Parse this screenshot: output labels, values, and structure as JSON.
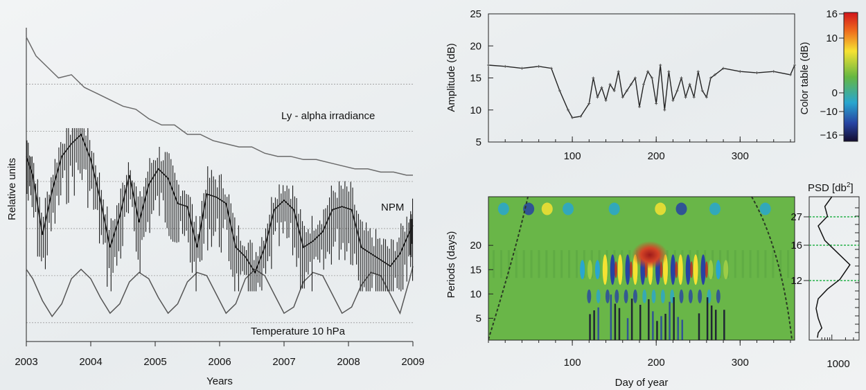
{
  "chart_data": [
    {
      "type": "line",
      "xlabel": "Years",
      "ylabel": "Relative units",
      "xlim": [
        2003,
        2009
      ],
      "x_ticks": [
        "2003",
        "2004",
        "2005",
        "2006",
        "2007",
        "2008",
        "2009"
      ],
      "grid": "dotted horizontal",
      "series": [
        {
          "name": "Ly - alpha irradiance",
          "color": "#6a6a6a",
          "x": [
            2003.0,
            2003.15,
            2003.35,
            2003.5,
            2003.7,
            2003.9,
            2004.1,
            2004.3,
            2004.5,
            2004.7,
            2004.9,
            2005.1,
            2005.3,
            2005.5,
            2005.7,
            2005.9,
            2006.1,
            2006.3,
            2006.5,
            2006.7,
            2006.9,
            2007.1,
            2007.3,
            2007.5,
            2007.7,
            2007.9,
            2008.1,
            2008.3,
            2008.5,
            2008.7,
            2008.9,
            2009.0
          ],
          "y": [
            0.97,
            0.91,
            0.87,
            0.84,
            0.85,
            0.81,
            0.79,
            0.77,
            0.75,
            0.74,
            0.71,
            0.69,
            0.69,
            0.66,
            0.66,
            0.64,
            0.63,
            0.62,
            0.62,
            0.6,
            0.59,
            0.59,
            0.58,
            0.58,
            0.57,
            0.56,
            0.55,
            0.55,
            0.54,
            0.54,
            0.53,
            0.53
          ]
        },
        {
          "name": "NPM",
          "color": "#1a1a1a",
          "x": [
            2003.0,
            2003.1,
            2003.25,
            2003.4,
            2003.55,
            2003.7,
            2003.85,
            2004.0,
            2004.15,
            2004.3,
            2004.45,
            2004.6,
            2004.75,
            2004.9,
            2005.05,
            2005.2,
            2005.35,
            2005.5,
            2005.65,
            2005.8,
            2005.95,
            2006.1,
            2006.25,
            2006.4,
            2006.55,
            2006.7,
            2006.85,
            2007.0,
            2007.15,
            2007.3,
            2007.45,
            2007.6,
            2007.75,
            2007.9,
            2008.05,
            2008.2,
            2008.35,
            2008.5,
            2008.65,
            2008.8,
            2008.95,
            2009.0
          ],
          "y": [
            0.59,
            0.53,
            0.34,
            0.48,
            0.59,
            0.63,
            0.66,
            0.58,
            0.45,
            0.3,
            0.4,
            0.53,
            0.38,
            0.5,
            0.55,
            0.52,
            0.44,
            0.43,
            0.3,
            0.47,
            0.46,
            0.44,
            0.3,
            0.27,
            0.22,
            0.3,
            0.42,
            0.45,
            0.42,
            0.3,
            0.32,
            0.35,
            0.42,
            0.43,
            0.42,
            0.3,
            0.28,
            0.26,
            0.24,
            0.28,
            0.35,
            0.37
          ]
        },
        {
          "name": "Temperature 10 hPa",
          "color": "#555555",
          "x": [
            2003.0,
            2003.1,
            2003.25,
            2003.4,
            2003.55,
            2003.7,
            2003.85,
            2004.0,
            2004.15,
            2004.3,
            2004.45,
            2004.6,
            2004.75,
            2004.9,
            2005.05,
            2005.2,
            2005.35,
            2005.5,
            2005.65,
            2005.8,
            2005.95,
            2006.1,
            2006.25,
            2006.4,
            2006.55,
            2006.7,
            2006.85,
            2007.0,
            2007.15,
            2007.3,
            2007.45,
            2007.6,
            2007.75,
            2007.9,
            2008.05,
            2008.2,
            2008.35,
            2008.5,
            2008.65,
            2008.8,
            2008.95,
            2009.0
          ],
          "y": [
            0.23,
            0.2,
            0.13,
            0.08,
            0.12,
            0.2,
            0.23,
            0.2,
            0.14,
            0.09,
            0.12,
            0.19,
            0.22,
            0.2,
            0.14,
            0.09,
            0.12,
            0.19,
            0.22,
            0.21,
            0.15,
            0.09,
            0.12,
            0.2,
            0.23,
            0.21,
            0.15,
            0.09,
            0.11,
            0.19,
            0.22,
            0.21,
            0.15,
            0.09,
            0.11,
            0.18,
            0.22,
            0.21,
            0.15,
            0.09,
            0.2,
            0.24
          ]
        }
      ]
    },
    {
      "type": "line",
      "xlabel": "",
      "ylabel": "Amplitude (dB)",
      "xlim": [
        0,
        365
      ],
      "ylim": [
        5,
        25
      ],
      "x_ticks": [
        100,
        200,
        300
      ],
      "y_ticks": [
        5,
        10,
        15,
        20,
        25
      ],
      "series": [
        {
          "x": [
            0,
            20,
            40,
            60,
            75,
            85,
            95,
            100,
            110,
            120,
            125,
            130,
            135,
            140,
            145,
            150,
            155,
            160,
            165,
            170,
            175,
            180,
            185,
            190,
            195,
            200,
            205,
            210,
            215,
            220,
            225,
            230,
            235,
            240,
            245,
            250,
            255,
            260,
            265,
            270,
            280,
            300,
            320,
            340,
            360,
            365
          ],
          "y": [
            17,
            16.8,
            16.5,
            16.8,
            16.5,
            13,
            10,
            8.8,
            9,
            11,
            15,
            12,
            13.5,
            11.5,
            14,
            13,
            16,
            12,
            13,
            14,
            15,
            10.5,
            14,
            16,
            15,
            11,
            17,
            10,
            16,
            11.5,
            13,
            15,
            12,
            14,
            12,
            16,
            13,
            12,
            15,
            15.5,
            16.5,
            16,
            15.8,
            16,
            15.5,
            17
          ]
        }
      ]
    },
    {
      "type": "heatmap",
      "xlabel": "Day of year",
      "ylabel": "Periods (days)",
      "xlim": [
        0,
        365
      ],
      "x_ticks": [
        100,
        200,
        300
      ],
      "y_ticks": [
        5,
        10,
        15,
        20
      ],
      "colorbar": {
        "label": "Color table (dB)",
        "range": [
          -16,
          16
        ],
        "ticks": [
          "16",
          "10",
          "0",
          "−10",
          "−16"
        ]
      }
    },
    {
      "type": "line",
      "title": "PSD [db²]",
      "title_base": "PSD [db",
      "title_sup": "2",
      "title_end": "]",
      "x_ticks": [
        "1000"
      ],
      "marked_periods": [
        "27",
        "16",
        "12"
      ],
      "marked_color": "#27b24a",
      "series": [
        {
          "x": [
            1000,
            700,
            800,
            500,
            700,
            1500,
            2500,
            1500,
            800,
            500,
            450,
            500,
            600,
            500,
            480
          ],
          "y": [
            30,
            28,
            26,
            24,
            21,
            18,
            16,
            13,
            11,
            9,
            7,
            5,
            3,
            2,
            1
          ]
        }
      ]
    }
  ]
}
